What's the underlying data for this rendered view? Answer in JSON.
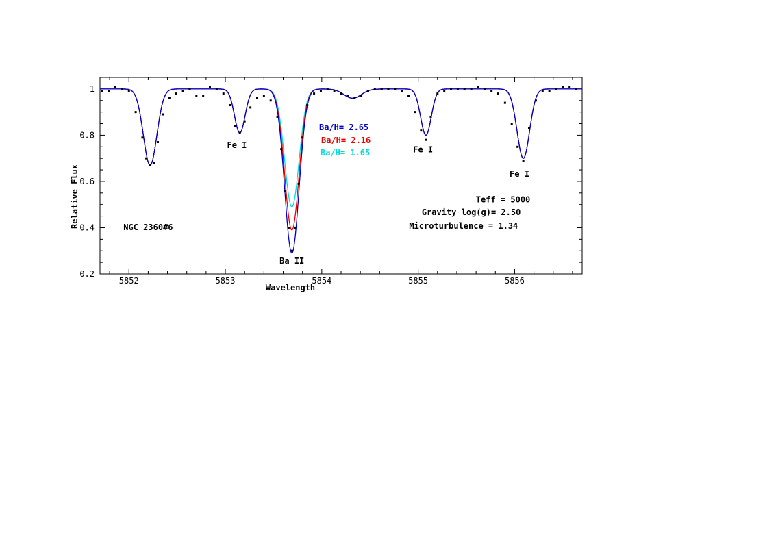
{
  "chart_data": {
    "type": "line",
    "title": "",
    "xlabel": "Wavelength",
    "ylabel": "Relative Flux",
    "xlim": [
      5851.7,
      5856.7
    ],
    "ylim": [
      0.2,
      1.05
    ],
    "x_ticks": [
      5852,
      5853,
      5854,
      5855,
      5856
    ],
    "y_ticks": [
      0.2,
      0.4,
      0.6,
      0.8,
      1
    ],
    "x_tick_labels": [
      "5852",
      "5853",
      "5854",
      "5855",
      "5856"
    ],
    "y_tick_labels": [
      "0.2",
      "0.4",
      "0.6",
      "0.8",
      "1"
    ],
    "grid": false,
    "lines": [
      {
        "element": "Fe I",
        "center": 5852.22,
        "depth": 0.33,
        "width": 0.07,
        "blend": false
      },
      {
        "element": "Fe I",
        "center": 5853.15,
        "depth": 0.19,
        "width": 0.055,
        "blend": false
      },
      {
        "element": "Ba II",
        "center": 5853.69,
        "depth": null,
        "width": 0.075,
        "blend": false
      },
      {
        "element": "",
        "center": 5854.32,
        "depth": 0.04,
        "width": 0.09,
        "blend": true
      },
      {
        "element": "Fe I",
        "center": 5855.08,
        "depth": 0.2,
        "width": 0.055,
        "blend": false
      },
      {
        "element": "Fe I",
        "center": 5856.09,
        "depth": 0.3,
        "width": 0.065,
        "blend": false
      }
    ],
    "series": [
      {
        "name": "Ba/H= 2.65",
        "label": "Ba/H= 2.65",
        "color": "#0000cc",
        "ba_depth": 0.71
      },
      {
        "name": "Ba/H= 2.16",
        "label": "Ba/H= 2.16",
        "color": "#ee0000",
        "ba_depth": 0.61
      },
      {
        "name": "Ba/H= 1.65",
        "label": "Ba/H= 1.65",
        "color": "#00dddd",
        "ba_depth": 0.51
      }
    ],
    "observed": {
      "name": "NGC 2360#6",
      "color": "#000000",
      "x": [
        5851.72,
        5851.79,
        5851.86,
        5851.93,
        5852.0,
        5852.07,
        5852.14,
        5852.18,
        5852.22,
        5852.26,
        5852.3,
        5852.35,
        5852.42,
        5852.49,
        5852.56,
        5852.63,
        5852.7,
        5852.77,
        5852.84,
        5852.91,
        5852.98,
        5853.05,
        5853.1,
        5853.15,
        5853.2,
        5853.26,
        5853.33,
        5853.4,
        5853.47,
        5853.54,
        5853.58,
        5853.62,
        5853.66,
        5853.69,
        5853.72,
        5853.76,
        5853.8,
        5853.85,
        5853.92,
        5853.99,
        5854.06,
        5854.13,
        5854.2,
        5854.27,
        5854.34,
        5854.41,
        5854.48,
        5854.55,
        5854.62,
        5854.69,
        5854.76,
        5854.83,
        5854.9,
        5854.97,
        5855.03,
        5855.08,
        5855.13,
        5855.2,
        5855.27,
        5855.34,
        5855.41,
        5855.48,
        5855.55,
        5855.62,
        5855.69,
        5855.76,
        5855.83,
        5855.9,
        5855.97,
        5856.03,
        5856.09,
        5856.15,
        5856.22,
        5856.29,
        5856.36,
        5856.43,
        5856.5,
        5856.57,
        5856.64
      ],
      "y": [
        0.99,
        0.99,
        1.01,
        1.0,
        0.99,
        0.9,
        0.79,
        0.7,
        0.67,
        0.68,
        0.77,
        0.89,
        0.96,
        0.98,
        0.99,
        1.0,
        0.97,
        0.97,
        1.01,
        1.0,
        0.98,
        0.93,
        0.84,
        0.81,
        0.86,
        0.92,
        0.96,
        0.97,
        0.95,
        0.88,
        0.74,
        0.56,
        0.4,
        0.3,
        0.4,
        0.59,
        0.79,
        0.93,
        0.98,
        0.99,
        1.0,
        0.99,
        0.98,
        0.97,
        0.96,
        0.97,
        0.99,
        1.0,
        1.0,
        1.0,
        1.0,
        0.99,
        0.97,
        0.9,
        0.82,
        0.78,
        0.88,
        0.98,
        0.99,
        1.0,
        1.0,
        1.0,
        1.0,
        1.01,
        1.0,
        0.99,
        0.98,
        0.94,
        0.85,
        0.75,
        0.69,
        0.83,
        0.95,
        0.99,
        0.99,
        1.0,
        1.01,
        1.01,
        1.0
      ]
    },
    "annotations": [
      {
        "text": "Fe I",
        "x": 5853.12,
        "y": 0.745
      },
      {
        "text": "Fe I",
        "x": 5855.05,
        "y": 0.725
      },
      {
        "text": "Fe I",
        "x": 5856.05,
        "y": 0.62
      },
      {
        "text": "Ba II",
        "x": 5853.69,
        "y": 0.245
      },
      {
        "text": "NGC 2360#6",
        "x": 5852.2,
        "y": 0.39
      },
      {
        "text": "Teff = 5000",
        "x": 5855.88,
        "y": 0.51
      },
      {
        "text": "Gravity log(g)= 2.50",
        "x": 5855.55,
        "y": 0.455
      },
      {
        "text": "Microturbulence = 1.34",
        "x": 5855.47,
        "y": 0.395
      }
    ]
  }
}
